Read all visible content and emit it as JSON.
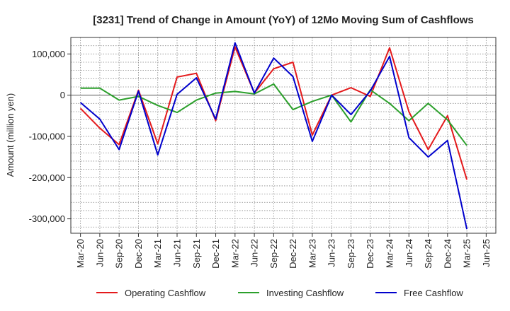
{
  "chart_data": {
    "type": "line",
    "title": "[3231]  Trend of Change in Amount (YoY) of 12Mo Moving Sum of Cashflows",
    "xlabel": "",
    "ylabel": "Amount (million yen)",
    "ylim": [
      -335000,
      140000
    ],
    "yticks": [
      100000,
      0,
      -100000,
      -200000,
      -300000
    ],
    "ytick_labels": [
      "100,000",
      "0",
      "-100,000",
      "-200,000",
      "-300,000"
    ],
    "grid": true,
    "legend_position": "bottom",
    "categories": [
      "Mar-20",
      "Jun-20",
      "Sep-20",
      "Dec-20",
      "Mar-21",
      "Jun-21",
      "Sep-21",
      "Dec-21",
      "Mar-22",
      "Jun-22",
      "Sep-22",
      "Dec-22",
      "Mar-23",
      "Jun-23",
      "Sep-23",
      "Dec-23",
      "Mar-24",
      "Jun-24",
      "Sep-24",
      "Dec-24",
      "Mar-25",
      "Jun-25"
    ],
    "series": [
      {
        "name": "Operating Cashflow",
        "color": "#e41a1c",
        "values": [
          -32000,
          -80000,
          -120000,
          12000,
          -118000,
          44000,
          53000,
          -62000,
          117000,
          5000,
          64000,
          80000,
          -97000,
          0,
          18000,
          -3000,
          115000,
          -40000,
          -132000,
          -50000,
          -205000,
          null
        ]
      },
      {
        "name": "Investing Cashflow",
        "color": "#2ca02c",
        "values": [
          17000,
          17000,
          -12000,
          -3000,
          -25000,
          -42000,
          -12000,
          5000,
          9000,
          3000,
          27000,
          -35000,
          -15000,
          0,
          -65000,
          13000,
          -20000,
          -62000,
          -20000,
          -60000,
          -122000,
          null
        ]
      },
      {
        "name": "Free Cashflow",
        "color": "#0000cc",
        "values": [
          -18000,
          -58000,
          -132000,
          10000,
          -145000,
          2000,
          42000,
          -58000,
          127000,
          5000,
          90000,
          45000,
          -112000,
          0,
          -47000,
          10000,
          94000,
          -103000,
          -150000,
          -110000,
          -325000,
          null
        ]
      }
    ]
  }
}
